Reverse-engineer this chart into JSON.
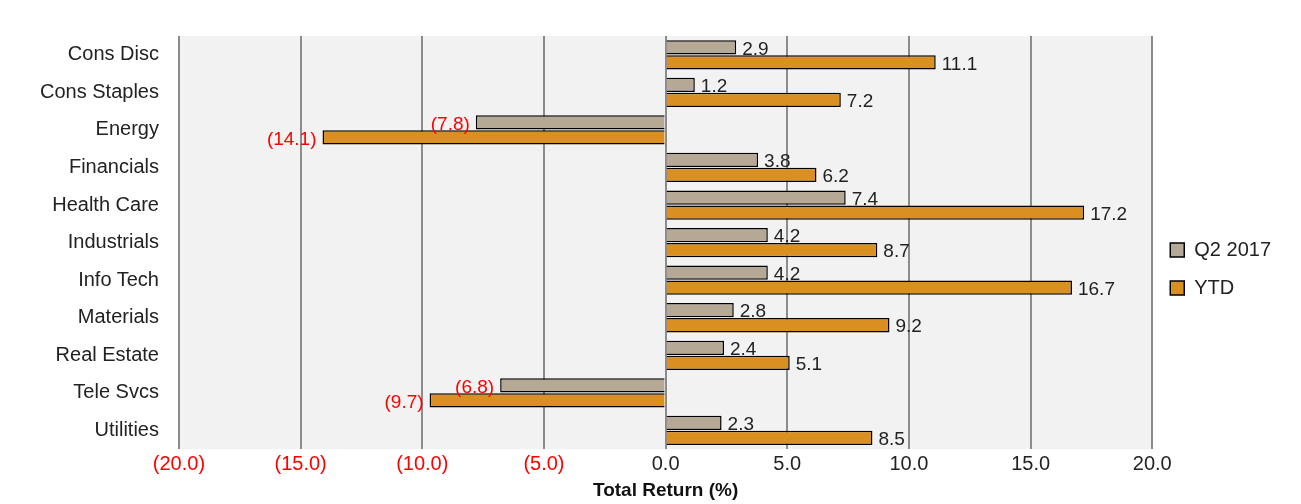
{
  "chart_data": {
    "type": "bar",
    "orientation": "horizontal",
    "xlabel": "Total Return (%)",
    "categories": [
      "Cons Disc",
      "Cons Staples",
      "Energy",
      "Financials",
      "Health Care",
      "Industrials",
      "Info Tech",
      "Materials",
      "Real Estate",
      "Tele Svcs",
      "Utilities"
    ],
    "series": [
      {
        "name": "Q2 2017",
        "color": "#b5a996",
        "values": [
          2.9,
          1.2,
          -7.8,
          3.8,
          7.4,
          4.2,
          4.2,
          2.8,
          2.4,
          -6.8,
          2.3
        ],
        "value_labels": [
          "2.9",
          "1.2",
          "(7.8)",
          "3.8",
          "7.4",
          "4.2",
          "4.2",
          "2.8",
          "2.4",
          "(6.8)",
          "2.3"
        ]
      },
      {
        "name": "YTD",
        "color": "#d99021",
        "values": [
          11.1,
          7.2,
          -14.1,
          6.2,
          17.2,
          8.7,
          16.7,
          9.2,
          5.1,
          -9.7,
          8.5
        ],
        "value_labels": [
          "11.1",
          "7.2",
          "(14.1)",
          "6.2",
          "17.2",
          "8.7",
          "16.7",
          "9.2",
          "5.1",
          "(9.7)",
          "8.5"
        ]
      }
    ],
    "xlim": [
      -20,
      20
    ],
    "xticks": [
      {
        "value": -20,
        "label": "(20.0)"
      },
      {
        "value": -15,
        "label": "(15.0)"
      },
      {
        "value": -10,
        "label": "(10.0)"
      },
      {
        "value": -5,
        "label": "(5.0)"
      },
      {
        "value": 0,
        "label": "0.0"
      },
      {
        "value": 5,
        "label": "5.0"
      },
      {
        "value": 10,
        "label": "10.0"
      },
      {
        "value": 15,
        "label": "15.0"
      },
      {
        "value": 20,
        "label": "20.0"
      }
    ],
    "grid": "x",
    "legend": "right"
  }
}
